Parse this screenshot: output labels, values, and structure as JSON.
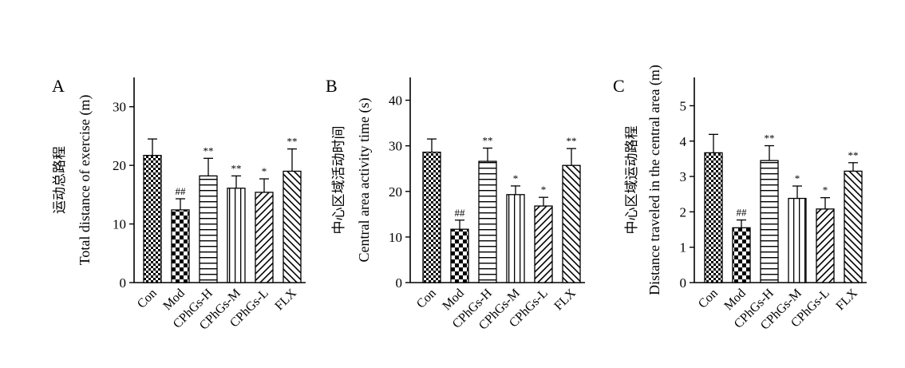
{
  "chart_data": [
    {
      "type": "bar",
      "panel_label": "A",
      "categories": [
        "Con",
        "Mod",
        "CPhGs-H",
        "CPhGs-M",
        "CPhGs-L",
        "FLX"
      ],
      "values": [
        21.7,
        12.4,
        18.2,
        16.1,
        15.4,
        19.0
      ],
      "errors": [
        2.8,
        1.9,
        3.0,
        2.1,
        2.3,
        3.8
      ],
      "annotations": [
        "",
        "##",
        "**",
        "**",
        "*",
        "**"
      ],
      "ylabel_cn": "运动总路程",
      "ylabel": "Total distance of exercise (m)",
      "ylim": [
        0,
        35
      ],
      "yticks": [
        0,
        10,
        20,
        30
      ]
    },
    {
      "type": "bar",
      "panel_label": "B",
      "categories": [
        "Con",
        "Mod",
        "CPhGs-H",
        "CPhGs-M",
        "CPhGs-L",
        "FLX"
      ],
      "values": [
        28.6,
        11.7,
        26.6,
        19.3,
        16.8,
        25.7
      ],
      "errors": [
        2.9,
        2.0,
        2.9,
        1.9,
        1.9,
        3.7
      ],
      "annotations": [
        "",
        "##",
        "**",
        "*",
        "*",
        "**"
      ],
      "ylabel_cn": "中心区域活动时间",
      "ylabel": "Central area activity time (s)",
      "ylim": [
        0,
        45
      ],
      "yticks": [
        0,
        10,
        20,
        30,
        40
      ]
    },
    {
      "type": "bar",
      "panel_label": "C",
      "categories": [
        "Con",
        "Mod",
        "CPhGs-H",
        "CPhGs-M",
        "CPhGs-L",
        "FLX"
      ],
      "values": [
        3.67,
        1.55,
        3.45,
        2.38,
        2.08,
        3.15
      ],
      "errors": [
        0.52,
        0.22,
        0.42,
        0.35,
        0.32,
        0.24
      ],
      "annotations": [
        "",
        "##",
        "**",
        "*",
        "*",
        "**"
      ],
      "ylabel_cn": "中心区域运动路程",
      "ylabel": "Distance traveled in the central area (m)",
      "ylim": [
        0,
        5.8
      ],
      "yticks": [
        0,
        1,
        2,
        3,
        4,
        5
      ]
    }
  ],
  "bar_patterns": [
    "checker-small",
    "checker-large",
    "horizontal-lines",
    "vertical-lines",
    "diagonal-forward",
    "diagonal-back"
  ],
  "colors": {
    "ink": "#000000",
    "background": "#ffffff"
  }
}
